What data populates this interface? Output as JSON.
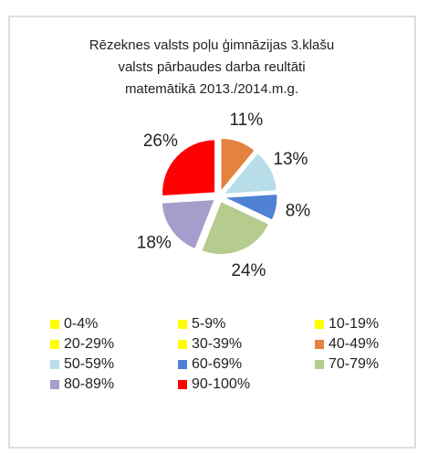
{
  "chart_data": {
    "type": "pie",
    "title": [
      "Rēzeknes valsts poļu ģimnāzijas 3.klašu",
      "valsts  pārbaudes darba reultāti",
      "matemātikā  2013./2014.m.g."
    ],
    "categories": [
      "0-4%",
      "5-9%",
      "10-19%",
      "20-29%",
      "30-39%",
      "40-49%",
      "50-59%",
      "60-69%",
      "70-79%",
      "80-89%",
      "90-100%"
    ],
    "values": [
      0,
      0,
      0,
      0,
      0,
      11,
      13,
      8,
      24,
      18,
      26
    ],
    "value_labels": [
      null,
      null,
      null,
      null,
      null,
      "11%",
      "13%",
      "8%",
      "24%",
      "18%",
      "26%"
    ],
    "colors": [
      "#ffff00",
      "#ffff00",
      "#ffff00",
      "#ffff00",
      "#ffff00",
      "#e5823f",
      "#b7dee8",
      "#4f81d4",
      "#b6cc8e",
      "#a59dcb",
      "#ff0000"
    ],
    "legend": "bottom"
  }
}
